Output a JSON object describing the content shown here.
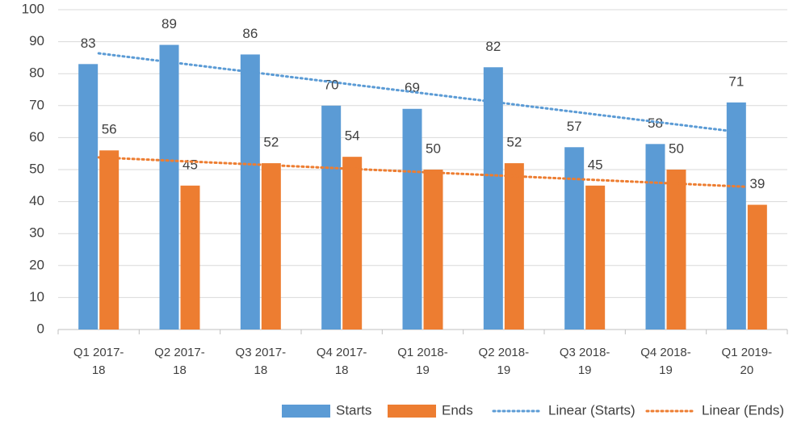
{
  "chart_data": {
    "type": "bar",
    "categories": [
      "Q1 2017-18",
      "Q2 2017-18",
      "Q3 2017-18",
      "Q4 2017-18",
      "Q1 2018-19",
      "Q2 2018-19",
      "Q3 2018-19",
      "Q4 2018-19",
      "Q1 2019-20"
    ],
    "series": [
      {
        "name": "Starts",
        "color": "#5b9bd5",
        "values": [
          83,
          89,
          86,
          70,
          69,
          82,
          57,
          58,
          71
        ],
        "trendline": "Linear (Starts)"
      },
      {
        "name": "Ends",
        "color": "#ed7d31",
        "values": [
          56,
          45,
          52,
          54,
          50,
          52,
          45,
          50,
          39
        ],
        "trendline": "Linear (Ends)"
      }
    ],
    "ylim": [
      0,
      100
    ],
    "yticks": [
      0,
      10,
      20,
      30,
      40,
      50,
      60,
      70,
      80,
      90,
      100
    ],
    "grid": true,
    "legend": "bottom"
  }
}
